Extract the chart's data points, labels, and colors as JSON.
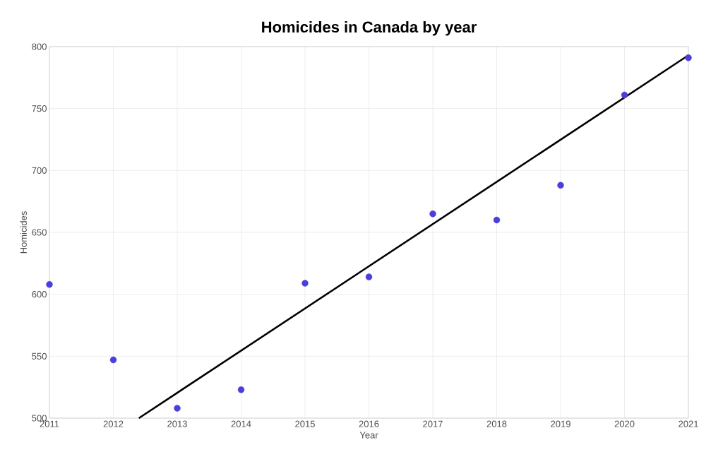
{
  "chart_data": {
    "type": "scatter",
    "title": "Homicides in Canada by year",
    "xlabel": "Year",
    "ylabel": "Homicides",
    "xlim": [
      2011,
      2021
    ],
    "ylim": [
      500,
      800
    ],
    "xticks": [
      2011,
      2012,
      2013,
      2014,
      2015,
      2016,
      2017,
      2018,
      2019,
      2020,
      2021
    ],
    "yticks": [
      500,
      550,
      600,
      650,
      700,
      750,
      800
    ],
    "grid": true,
    "series": [
      {
        "color": "#4b3fdc",
        "marker": "circle",
        "x": [
          2011,
          2012,
          2013,
          2014,
          2015,
          2016,
          2017,
          2018,
          2019,
          2020,
          2021
        ],
        "values": [
          608,
          547,
          508,
          523,
          609,
          614,
          665,
          660,
          688,
          761,
          791
        ]
      },
      {
        "type": "line",
        "marker": "none",
        "color": "#000000",
        "x": [
          2012.4,
          2021
        ],
        "values": [
          500,
          793
        ]
      }
    ]
  }
}
